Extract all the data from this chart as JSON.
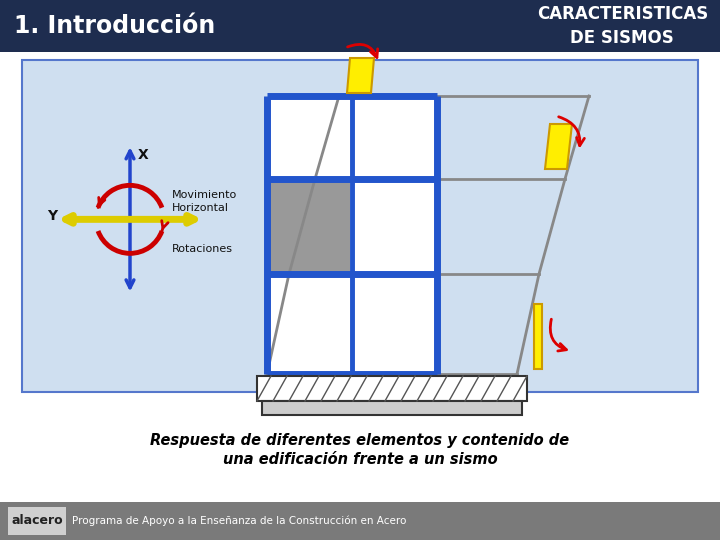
{
  "header_bg": "#1e2d4f",
  "header_left_text": "1. Introducción",
  "header_right_text": "CARACTERISTICAS\nDE SISMOS",
  "header_text_color": "#ffffff",
  "footer_bg": "#7a7a7a",
  "footer_text": "Programa de Apoyo a la Enseñanza de la Construcción en Acero",
  "footer_alacero": "alacero",
  "footer_text_color": "#ffffff",
  "bg_color": "#ffffff",
  "caption_line1": "Respuesta de diferentes elementos y contenido de",
  "caption_line2": "una edificación frente a un sismo",
  "caption_color": "#000000",
  "diagram_bg": "#cfdff0",
  "diagram_border": "#4466aa"
}
